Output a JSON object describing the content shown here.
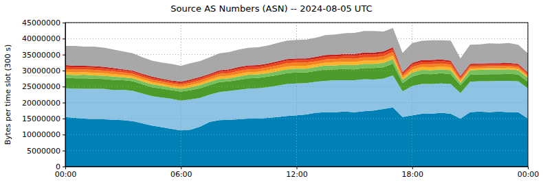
{
  "chart_data": {
    "type": "area",
    "stacked": true,
    "grid": true,
    "title": "Source AS Numbers (ASN) -- 2024-08-05 UTC",
    "y_label": "Bytes per time slot (300 s)",
    "x": [
      0,
      0.5,
      1,
      1.5,
      2,
      2.5,
      3,
      3.5,
      4,
      4.5,
      5,
      5.5,
      6,
      6.5,
      7,
      7.5,
      8,
      8.5,
      9,
      9.5,
      10,
      10.5,
      11,
      11.5,
      12,
      12.5,
      13,
      13.5,
      14,
      14.5,
      15,
      15.5,
      16,
      16.5,
      17,
      17.5,
      18,
      18.5,
      19,
      19.5,
      20,
      20.5,
      21,
      21.5,
      22,
      22.5,
      23,
      23.5,
      24
    ],
    "xlim": [
      0,
      24
    ],
    "xticks": [
      {
        "value": 0,
        "label": "00:00"
      },
      {
        "value": 6,
        "label": "06:00"
      },
      {
        "value": 12,
        "label": "12:00"
      },
      {
        "value": 18,
        "label": "18:00"
      },
      {
        "value": 24,
        "label": "00:00"
      }
    ],
    "ylim": [
      0,
      45000000
    ],
    "yticks": [
      0,
      5000000,
      10000000,
      15000000,
      20000000,
      25000000,
      30000000,
      35000000,
      40000000,
      45000000
    ],
    "series": [
      {
        "color": "#0081b5",
        "values": [
          15500000,
          15200000,
          15000000,
          14800000,
          14800000,
          14600000,
          14500000,
          14200000,
          13500000,
          12800000,
          12300000,
          11800000,
          11300000,
          11500000,
          12500000,
          14000000,
          14500000,
          14600000,
          14800000,
          15000000,
          15000000,
          15200000,
          15500000,
          15800000,
          16000000,
          16300000,
          16800000,
          17000000,
          17000000,
          17200000,
          17000000,
          17300000,
          17500000,
          18000000,
          18500000,
          15500000,
          16000000,
          16500000,
          16500000,
          16800000,
          16500000,
          15000000,
          17000000,
          17200000,
          17000000,
          17200000,
          17000000,
          17000000,
          15000000
        ]
      },
      {
        "color": "#8ec3e4",
        "values": [
          9000000,
          9200000,
          9300000,
          9500000,
          9500000,
          9300000,
          9500000,
          9500000,
          9300000,
          9200000,
          9300000,
          9400000,
          9300000,
          9500000,
          9000000,
          8500000,
          8800000,
          9000000,
          9200000,
          9400000,
          9500000,
          9600000,
          9800000,
          10000000,
          10000000,
          9800000,
          9700000,
          9800000,
          10000000,
          9800000,
          10000000,
          10000000,
          9700000,
          9500000,
          10000000,
          8000000,
          9200000,
          9300000,
          9300000,
          9200000,
          9300000,
          8000000,
          9500000,
          9500000,
          9700000,
          9600000,
          9800000,
          9700000,
          9500000
        ]
      },
      {
        "color": "#4c9a2a",
        "values": [
          3300000,
          3200000,
          3300000,
          3200000,
          3100000,
          3200000,
          3000000,
          3000000,
          2900000,
          2800000,
          2800000,
          2700000,
          2800000,
          2900000,
          3000000,
          3000000,
          3100000,
          3000000,
          3100000,
          3200000,
          3200000,
          3300000,
          3300000,
          3400000,
          3400000,
          3300000,
          3400000,
          3500000,
          3400000,
          3500000,
          3400000,
          3500000,
          3600000,
          3500000,
          3700000,
          2600000,
          3000000,
          3200000,
          3100000,
          3200000,
          3100000,
          2400000,
          2200000,
          2100000,
          2200000,
          2100000,
          2200000,
          2100000,
          2000000
        ]
      },
      {
        "color": "#78bf5e",
        "values": [
          1000000,
          1000000,
          1100000,
          1000000,
          1000000,
          1000000,
          900000,
          900000,
          900000,
          900000,
          900000,
          800000,
          900000,
          900000,
          1000000,
          1000000,
          1000000,
          1000000,
          1100000,
          1100000,
          1100000,
          1100000,
          1200000,
          1200000,
          1200000,
          1200000,
          1200000,
          1300000,
          1200000,
          1300000,
          1300000,
          1300000,
          1300000,
          1400000,
          1400000,
          1000000,
          1200000,
          1200000,
          1200000,
          1200000,
          1200000,
          800000,
          1400000,
          1400000,
          1400000,
          1400000,
          1400000,
          1300000,
          1200000
        ]
      },
      {
        "color": "#fbb52a",
        "values": [
          800000,
          800000,
          800000,
          800000,
          800000,
          800000,
          700000,
          700000,
          700000,
          700000,
          600000,
          600000,
          600000,
          700000,
          700000,
          700000,
          800000,
          800000,
          800000,
          800000,
          800000,
          900000,
          900000,
          900000,
          900000,
          900000,
          900000,
          900000,
          1000000,
          1000000,
          1000000,
          1000000,
          1000000,
          1000000,
          1100000,
          700000,
          900000,
          900000,
          900000,
          900000,
          900000,
          600000,
          500000,
          500000,
          500000,
          500000,
          500000,
          500000,
          500000
        ]
      },
      {
        "color": "#f58220",
        "values": [
          900000,
          900000,
          800000,
          900000,
          800000,
          800000,
          800000,
          700000,
          700000,
          700000,
          700000,
          700000,
          700000,
          700000,
          800000,
          800000,
          800000,
          800000,
          900000,
          900000,
          900000,
          900000,
          900000,
          1000000,
          1000000,
          1000000,
          900000,
          1000000,
          1000000,
          1000000,
          1000000,
          1000000,
          1000000,
          1100000,
          1100000,
          700000,
          900000,
          900000,
          1000000,
          900000,
          900000,
          600000,
          600000,
          600000,
          600000,
          600000,
          600000,
          600000,
          500000
        ]
      },
      {
        "color": "#e8481c",
        "values": [
          700000,
          700000,
          700000,
          700000,
          700000,
          600000,
          600000,
          600000,
          600000,
          600000,
          500000,
          500000,
          500000,
          600000,
          600000,
          600000,
          600000,
          700000,
          700000,
          700000,
          700000,
          700000,
          800000,
          800000,
          800000,
          800000,
          800000,
          800000,
          800000,
          800000,
          900000,
          900000,
          900000,
          900000,
          900000,
          600000,
          700000,
          800000,
          800000,
          800000,
          700000,
          500000,
          500000,
          500000,
          500000,
          500000,
          500000,
          500000,
          400000
        ]
      },
      {
        "color": "#c41e1a",
        "values": [
          500000,
          500000,
          500000,
          500000,
          500000,
          500000,
          400000,
          400000,
          400000,
          400000,
          400000,
          400000,
          400000,
          400000,
          400000,
          400000,
          500000,
          500000,
          500000,
          500000,
          500000,
          500000,
          500000,
          500000,
          500000,
          500000,
          600000,
          600000,
          600000,
          600000,
          600000,
          600000,
          600000,
          600000,
          600000,
          400000,
          500000,
          500000,
          500000,
          500000,
          500000,
          400000,
          400000,
          400000,
          400000,
          400000,
          400000,
          400000,
          300000
        ]
      },
      {
        "color": "#a8a8a8",
        "values": [
          6000000,
          6200000,
          6000000,
          6100000,
          6000000,
          5800000,
          5600000,
          5400000,
          5200000,
          5000000,
          5000000,
          5200000,
          5000000,
          5100000,
          5000000,
          5200000,
          5300000,
          5400000,
          5500000,
          5500000,
          5600000,
          5600000,
          5700000,
          5800000,
          5800000,
          5900000,
          6000000,
          6200000,
          6300000,
          6500000,
          6600000,
          6800000,
          6800000,
          6200000,
          6000000,
          6000000,
          6200000,
          6000000,
          6200000,
          6000000,
          6300000,
          5500000,
          6000000,
          6000000,
          6200000,
          6100000,
          6200000,
          6000000,
          6000000
        ]
      }
    ]
  }
}
